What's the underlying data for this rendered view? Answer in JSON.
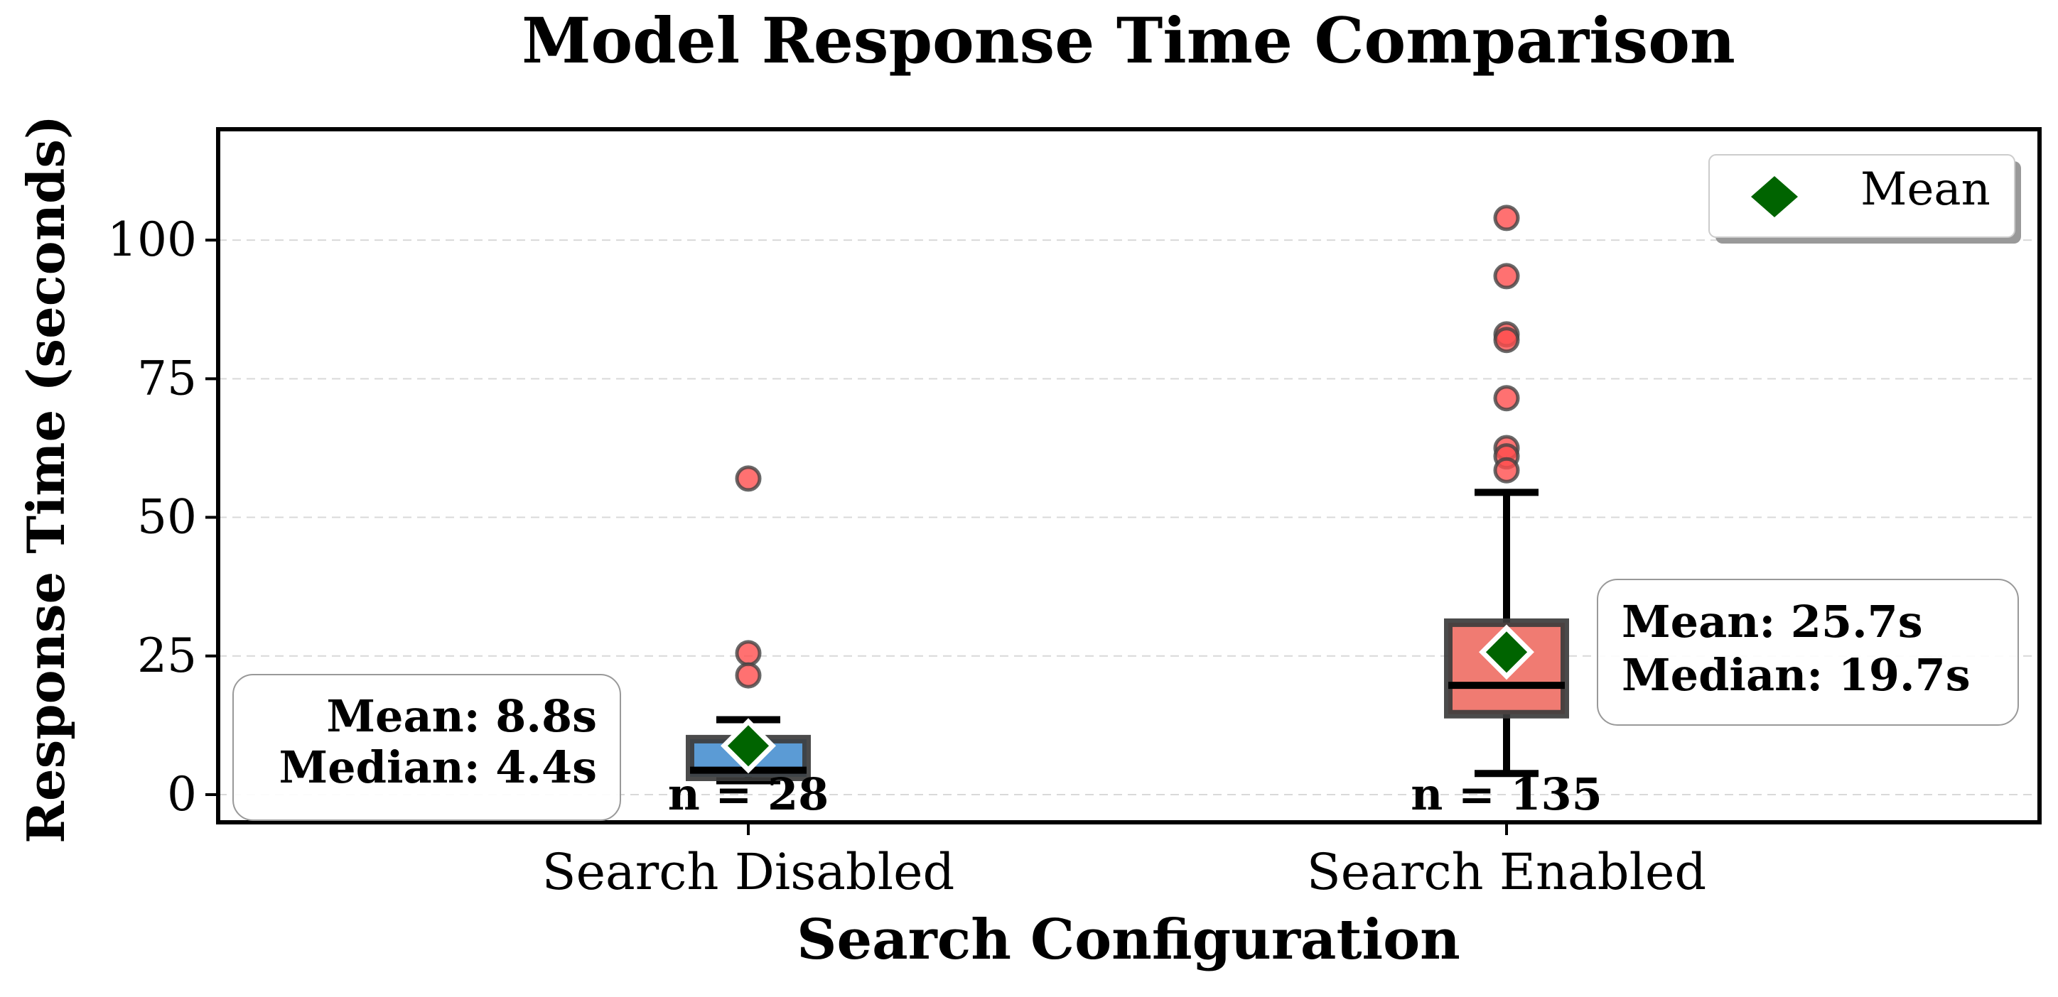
{
  "chart_data": {
    "type": "box",
    "title": "Model Response Time Comparison",
    "xlabel": "Search Configuration",
    "ylabel": "Response Time (seconds)",
    "ylim": [
      -5,
      120
    ],
    "yticks": [
      0,
      25,
      50,
      75,
      100
    ],
    "grid": "y-dashed",
    "legend": {
      "position": "top-right",
      "label": "Mean",
      "marker": "diamond",
      "color": "#006400"
    },
    "categories": [
      "Search Disabled",
      "Search Enabled"
    ],
    "groups": [
      {
        "name": "Search Disabled",
        "color": "#5b9bd5",
        "whisker_low": 2.5,
        "q1": 3.2,
        "median": 4.4,
        "q3": 10.0,
        "whisker_high": 13.5,
        "mean": 8.8,
        "outliers": [
          57,
          25.5,
          21.5
        ],
        "n_label": "n = 28",
        "stats_text": [
          "Mean: 8.8s",
          "Median: 4.4s"
        ],
        "stats_box_side": "left"
      },
      {
        "name": "Search Enabled",
        "color": "#f07b72",
        "whisker_low": 3.8,
        "q1": 14.5,
        "median": 19.7,
        "q3": 31.0,
        "whisker_high": 54.5,
        "mean": 25.7,
        "outliers": [
          104,
          93.5,
          83,
          82,
          71.5,
          62.5,
          61,
          58.5
        ],
        "n_label": "n = 135",
        "stats_text": [
          "Mean: 25.7s",
          "Median: 19.7s"
        ],
        "stats_box_side": "right"
      }
    ]
  }
}
